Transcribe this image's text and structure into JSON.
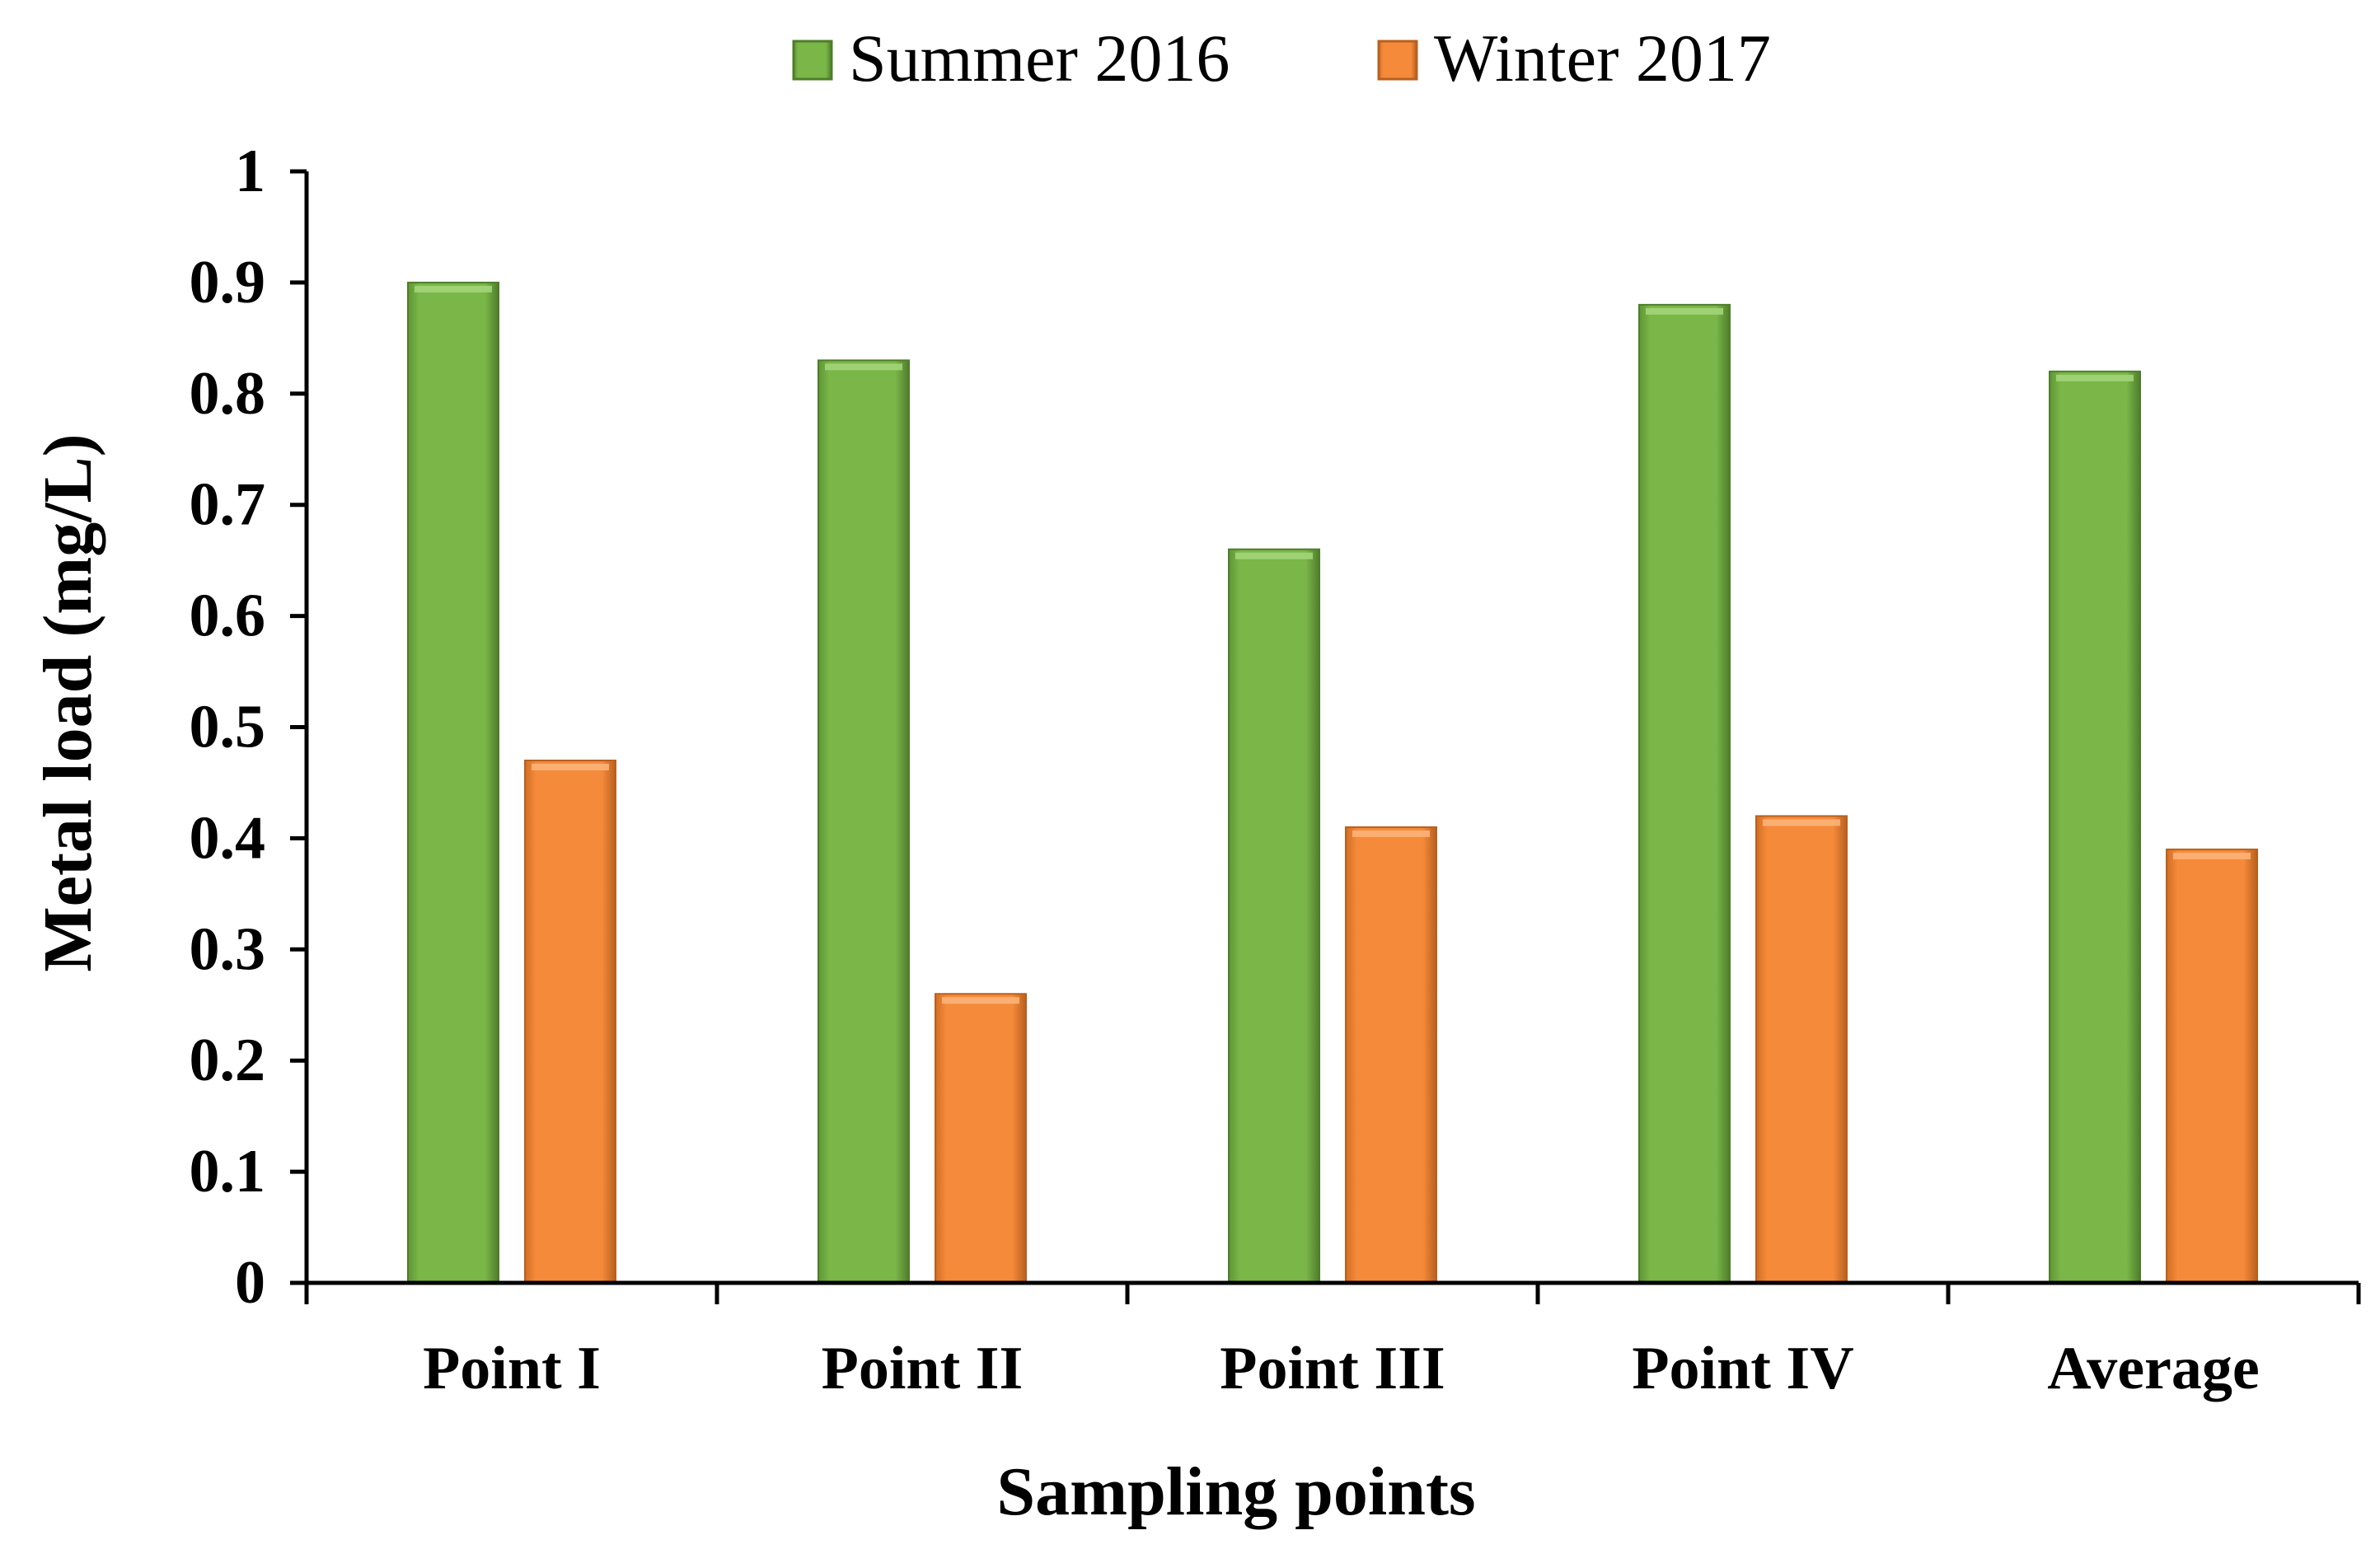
{
  "chart_data": {
    "type": "bar",
    "title": "",
    "xlabel": "Sampling points",
    "ylabel": "Metal load (mg/L)",
    "ylim": [
      0,
      1
    ],
    "yticks": [
      "0",
      "0.1",
      "0.2",
      "0.3",
      "0.4",
      "0.5",
      "0.6",
      "0.7",
      "0.8",
      "0.9",
      "1"
    ],
    "grid": false,
    "legend_position": "top-center",
    "categories": [
      "Point I",
      "Point II",
      "Point III",
      "Point IV",
      "Average"
    ],
    "series": [
      {
        "name": "Summer 2016",
        "color": "#7ab648",
        "values": [
          0.9,
          0.83,
          0.66,
          0.88,
          0.82
        ]
      },
      {
        "name": "Winter 2017",
        "color": "#f58a3a",
        "values": [
          0.47,
          0.26,
          0.41,
          0.42,
          0.39
        ]
      }
    ]
  }
}
